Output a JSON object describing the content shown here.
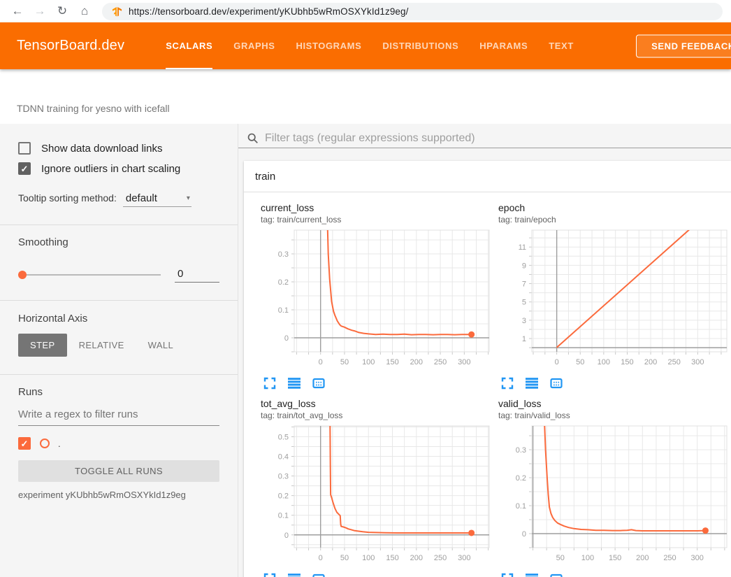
{
  "browser": {
    "url": "https://tensorboard.dev/experiment/yKUbhb5wRmOSXYkId1z9eg/",
    "icons": {
      "back": "←",
      "forward": "→",
      "reload": "↻",
      "home": "⌂"
    }
  },
  "header": {
    "logo": "TensorBoard.dev",
    "tabs": [
      {
        "label": "SCALARS",
        "active": true
      },
      {
        "label": "GRAPHS",
        "active": false
      },
      {
        "label": "HISTOGRAMS",
        "active": false
      },
      {
        "label": "DISTRIBUTIONS",
        "active": false
      },
      {
        "label": "HPARAMS",
        "active": false
      },
      {
        "label": "TEXT",
        "active": false
      }
    ],
    "feedback_label": "SEND FEEDBACK"
  },
  "experiment_title": "TDNN training for yesno with icefall",
  "sidebar": {
    "show_data_download_links": {
      "label": "Show data download links",
      "checked": false
    },
    "ignore_outliers": {
      "label": "Ignore outliers in chart scaling",
      "checked": true
    },
    "tooltip_sorting": {
      "label": "Tooltip sorting method:",
      "value": "default"
    },
    "smoothing": {
      "label": "Smoothing",
      "value": "0"
    },
    "horizontal_axis": {
      "label": "Horizontal Axis",
      "options": [
        "STEP",
        "RELATIVE",
        "WALL"
      ],
      "selected": "STEP"
    },
    "runs": {
      "label": "Runs",
      "filter_placeholder": "Write a regex to filter runs",
      "items": [
        {
          "name": ".",
          "checked": true,
          "color": "#fb6a3c"
        }
      ],
      "toggle_all_label": "TOGGLE ALL RUNS",
      "caption": "experiment yKUbhb5wRmOSXYkId1z9eg"
    },
    "icons": {
      "check": "✓",
      "caret": "▾"
    }
  },
  "main": {
    "filter_placeholder": "Filter tags (regular expressions supported)",
    "group_label": "train"
  },
  "colors": {
    "header_orange": "#fa6d01",
    "run_color": "#fb6a3c",
    "icon_blue": "#2196f3",
    "grid": "#e8e8e8",
    "zero_line": "#9e9e9e",
    "tick_label": "#9e9e9e"
  },
  "chart_data": [
    {
      "type": "line",
      "title": "current_loss",
      "tag": "tag: train/current_loss",
      "x_axis": "step",
      "x_ticks": [
        0,
        50,
        100,
        150,
        200,
        250,
        300
      ],
      "y_ticks": [
        0,
        0.1,
        0.2,
        0.3
      ],
      "x_domain": [
        -55,
        352
      ],
      "y_domain": [
        -0.05,
        0.385
      ],
      "x_grid_step": 25,
      "y_grid_step": 0.05,
      "series": [
        {
          "name": ".",
          "points": [
            [
              13,
              0.5
            ],
            [
              16,
              0.3
            ],
            [
              19,
              0.21
            ],
            [
              23,
              0.13
            ],
            [
              27,
              0.095
            ],
            [
              30,
              0.08
            ],
            [
              35,
              0.06
            ],
            [
              40,
              0.047
            ],
            [
              43,
              0.042
            ],
            [
              50,
              0.038
            ],
            [
              57,
              0.032
            ],
            [
              65,
              0.027
            ],
            [
              72,
              0.024
            ],
            [
              80,
              0.019
            ],
            [
              90,
              0.016
            ],
            [
              100,
              0.014
            ],
            [
              115,
              0.012
            ],
            [
              130,
              0.013
            ],
            [
              145,
              0.012
            ],
            [
              160,
              0.012
            ],
            [
              175,
              0.013
            ],
            [
              190,
              0.011
            ],
            [
              205,
              0.012
            ],
            [
              220,
              0.012
            ],
            [
              235,
              0.011
            ],
            [
              250,
              0.012
            ],
            [
              265,
              0.012
            ],
            [
              280,
              0.011
            ],
            [
              295,
              0.012
            ],
            [
              315,
              0.012
            ]
          ]
        }
      ],
      "end_dot": [
        315,
        0.012
      ]
    },
    {
      "type": "line",
      "title": "epoch",
      "tag": "tag: train/epoch",
      "x_axis": "step",
      "x_ticks": [
        0,
        50,
        100,
        150,
        200,
        250,
        300
      ],
      "y_ticks": [
        1,
        3,
        5,
        7,
        9,
        11
      ],
      "x_domain": [
        -53,
        362
      ],
      "y_domain": [
        -0.45,
        12.85
      ],
      "x_grid_step": 25,
      "y_grid_step": 1,
      "series": [
        {
          "name": ".",
          "points": [
            [
              0,
              0.02
            ],
            [
              315,
              14.4
            ]
          ]
        }
      ],
      "end_dot": null
    },
    {
      "type": "line",
      "title": "tot_avg_loss",
      "tag": "tag: train/tot_avg_loss",
      "x_axis": "step",
      "x_ticks": [
        0,
        50,
        100,
        150,
        200,
        250,
        300
      ],
      "y_ticks": [
        0,
        0.1,
        0.2,
        0.3,
        0.4,
        0.5
      ],
      "x_domain": [
        -55,
        352
      ],
      "y_domain": [
        -0.065,
        0.555
      ],
      "x_grid_step": 25,
      "y_grid_step": 0.05,
      "series": [
        {
          "name": ".",
          "points": [
            [
              19.5,
              0.62
            ],
            [
              20,
              0.5
            ],
            [
              20.4,
              0.35
            ],
            [
              20.8,
              0.24
            ],
            [
              21,
              0.205
            ],
            [
              23,
              0.19
            ],
            [
              26,
              0.165
            ],
            [
              30,
              0.135
            ],
            [
              34,
              0.115
            ],
            [
              38,
              0.105
            ],
            [
              41,
              0.098
            ],
            [
              42,
              0.055
            ],
            [
              43,
              0.043
            ],
            [
              48,
              0.04
            ],
            [
              53,
              0.036
            ],
            [
              58,
              0.03
            ],
            [
              63,
              0.027
            ],
            [
              70,
              0.022
            ],
            [
              78,
              0.019
            ],
            [
              88,
              0.016
            ],
            [
              100,
              0.013
            ],
            [
              115,
              0.012
            ],
            [
              135,
              0.011
            ],
            [
              160,
              0.01
            ],
            [
              190,
              0.01
            ],
            [
              220,
              0.01
            ],
            [
              250,
              0.01
            ],
            [
              280,
              0.01
            ],
            [
              315,
              0.01
            ]
          ]
        }
      ],
      "end_dot": [
        315,
        0.01
      ]
    },
    {
      "type": "line",
      "title": "valid_loss",
      "tag": "tag: train/valid_loss",
      "x_axis": "step",
      "x_ticks": [
        50,
        100,
        150,
        200,
        250,
        300
      ],
      "y_ticks": [
        0,
        0.1,
        0.2,
        0.3
      ],
      "x_domain": [
        -2,
        354
      ],
      "y_domain": [
        -0.05,
        0.385
      ],
      "x_grid_step": 25,
      "y_grid_step": 0.05,
      "series": [
        {
          "name": ".",
          "points": [
            [
              19,
              0.5
            ],
            [
              23,
              0.3
            ],
            [
              26,
              0.2
            ],
            [
              28,
              0.14
            ],
            [
              30,
              0.095
            ],
            [
              33,
              0.072
            ],
            [
              36,
              0.058
            ],
            [
              40,
              0.047
            ],
            [
              45,
              0.038
            ],
            [
              50,
              0.033
            ],
            [
              57,
              0.027
            ],
            [
              65,
              0.022
            ],
            [
              75,
              0.018
            ],
            [
              88,
              0.015
            ],
            [
              100,
              0.014
            ],
            [
              115,
              0.012
            ],
            [
              130,
              0.012
            ],
            [
              145,
              0.011
            ],
            [
              160,
              0.011
            ],
            [
              172,
              0.012
            ],
            [
              180,
              0.014
            ],
            [
              188,
              0.011
            ],
            [
              200,
              0.01
            ],
            [
              220,
              0.01
            ],
            [
              240,
              0.01
            ],
            [
              260,
              0.01
            ],
            [
              280,
              0.01
            ],
            [
              300,
              0.01
            ],
            [
              315,
              0.011
            ]
          ]
        }
      ],
      "end_dot": [
        315,
        0.011
      ]
    }
  ]
}
